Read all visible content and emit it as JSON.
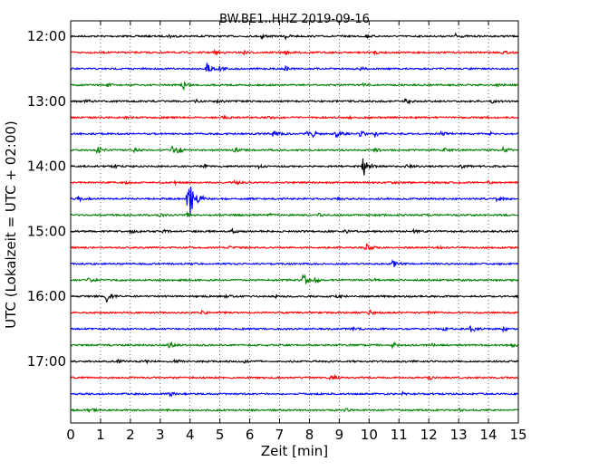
{
  "chart_data": {
    "type": "line",
    "title": "BW.BE1..HHZ 2019-09-16",
    "xlabel": "Zeit  [min]",
    "ylabel": "UTC (Lokalzeit = UTC + 02:00)",
    "xlim": [
      0,
      15
    ],
    "x_ticks": [
      "0",
      "1",
      "2",
      "3",
      "4",
      "5",
      "6",
      "7",
      "8",
      "9",
      "10",
      "11",
      "12",
      "13",
      "14",
      "15"
    ],
    "y_ticks": [
      "12:00",
      "13:00",
      "14:00",
      "15:00",
      "16:00",
      "17:00"
    ],
    "grid": "vertical dotted",
    "series_colors": [
      "#000000",
      "#ff0000",
      "#0000ff",
      "#008000"
    ],
    "traces": [
      {
        "start": "12:00",
        "color": "#000000",
        "events": [
          [
            3.3,
            0.25
          ],
          [
            6.4,
            0.35
          ],
          [
            7.2,
            0.3
          ],
          [
            9.9,
            0.2
          ],
          [
            12.9,
            0.35
          ]
        ]
      },
      {
        "start": "12:15",
        "color": "#ff0000",
        "events": [
          [
            4.8,
            0.25
          ],
          [
            5.8,
            0.2
          ],
          [
            7.2,
            0.25
          ],
          [
            10.2,
            0.2
          ],
          [
            14.5,
            0.2
          ]
        ]
      },
      {
        "start": "12:30",
        "color": "#0000ff",
        "events": [
          [
            4.55,
            1.3
          ],
          [
            5.0,
            0.4
          ],
          [
            7.2,
            0.3
          ],
          [
            9.7,
            0.25
          ]
        ]
      },
      {
        "start": "12:45",
        "color": "#008000",
        "events": [
          [
            1.2,
            0.3
          ],
          [
            3.75,
            0.9
          ],
          [
            9.8,
            0.2
          ],
          [
            14.2,
            0.2
          ]
        ]
      },
      {
        "start": "13:00",
        "color": "#000000",
        "events": [
          [
            0.5,
            0.3
          ],
          [
            4.2,
            0.25
          ],
          [
            4.9,
            0.3
          ],
          [
            11.2,
            0.55
          ],
          [
            14.1,
            0.2
          ]
        ]
      },
      {
        "start": "13:15",
        "color": "#ff0000",
        "events": [
          [
            1.8,
            0.2
          ],
          [
            5.1,
            0.2
          ],
          [
            6.6,
            0.2
          ],
          [
            9.3,
            0.2
          ]
        ]
      },
      {
        "start": "13:30",
        "color": "#0000ff",
        "events": [
          [
            6.8,
            0.55
          ],
          [
            7.9,
            0.5
          ],
          [
            8.1,
            0.45
          ],
          [
            8.9,
            0.5
          ],
          [
            9.7,
            0.5
          ],
          [
            10.2,
            0.45
          ],
          [
            12.4,
            0.35
          ],
          [
            14.0,
            0.3
          ]
        ]
      },
      {
        "start": "13:45",
        "color": "#008000",
        "events": [
          [
            0.9,
            0.55
          ],
          [
            2.1,
            0.3
          ],
          [
            3.4,
            0.5
          ],
          [
            3.6,
            0.4
          ],
          [
            5.5,
            0.35
          ],
          [
            10.2,
            0.3
          ],
          [
            12.5,
            0.3
          ],
          [
            14.5,
            0.35
          ]
        ]
      },
      {
        "start": "14:00",
        "color": "#000000",
        "events": [
          [
            1.4,
            0.3
          ],
          [
            4.5,
            0.25
          ],
          [
            6.3,
            0.2
          ],
          [
            9.8,
            1.9
          ],
          [
            11.2,
            0.3
          ],
          [
            13.1,
            0.35
          ]
        ]
      },
      {
        "start": "14:15",
        "color": "#ff0000",
        "events": [
          [
            1.8,
            0.2
          ],
          [
            3.5,
            0.2
          ],
          [
            5.5,
            0.25
          ],
          [
            10.7,
            0.2
          ],
          [
            14.0,
            0.2
          ]
        ]
      },
      {
        "start": "14:30",
        "color": "#0000ff",
        "events": [
          [
            0.25,
            0.35
          ],
          [
            3.9,
            0.9
          ],
          [
            4.0,
            2.2
          ],
          [
            4.3,
            0.6
          ],
          [
            8.9,
            0.25
          ],
          [
            14.3,
            0.4
          ]
        ]
      },
      {
        "start": "14:45",
        "color": "#008000",
        "events": [
          [
            3.0,
            0.25
          ],
          [
            3.9,
            0.3
          ],
          [
            6.7,
            0.2
          ],
          [
            8.3,
            0.2
          ],
          [
            10.4,
            0.2
          ]
        ]
      },
      {
        "start": "15:00",
        "color": "#000000",
        "events": [
          [
            2.0,
            0.3
          ],
          [
            3.1,
            0.2
          ],
          [
            5.4,
            0.25
          ],
          [
            9.2,
            0.25
          ],
          [
            11.5,
            0.2
          ]
        ]
      },
      {
        "start": "15:15",
        "color": "#ff0000",
        "events": [
          [
            5.3,
            0.2
          ],
          [
            9.9,
            0.6
          ],
          [
            12.3,
            0.2
          ]
        ]
      },
      {
        "start": "15:30",
        "color": "#0000ff",
        "events": [
          [
            10.8,
            0.55
          ],
          [
            4.0,
            0.15
          ]
        ]
      },
      {
        "start": "15:45",
        "color": "#008000",
        "events": [
          [
            0.6,
            0.3
          ],
          [
            7.8,
            1.0
          ],
          [
            8.2,
            0.4
          ],
          [
            10.2,
            0.2
          ]
        ]
      },
      {
        "start": "16:00",
        "color": "#000000",
        "events": [
          [
            1.2,
            0.8
          ],
          [
            5.2,
            0.2
          ],
          [
            6.9,
            0.25
          ],
          [
            8.9,
            0.2
          ]
        ]
      },
      {
        "start": "16:15",
        "color": "#ff0000",
        "events": [
          [
            4.4,
            0.2
          ],
          [
            10.0,
            0.4
          ],
          [
            12.0,
            0.2
          ]
        ]
      },
      {
        "start": "16:30",
        "color": "#0000ff",
        "events": [
          [
            9.5,
            0.25
          ],
          [
            12.5,
            0.25
          ],
          [
            13.4,
            0.5
          ],
          [
            14.5,
            0.3
          ]
        ]
      },
      {
        "start": "16:45",
        "color": "#008000",
        "events": [
          [
            3.3,
            0.4
          ],
          [
            10.8,
            0.45
          ],
          [
            12.1,
            0.2
          ],
          [
            14.8,
            0.2
          ]
        ]
      },
      {
        "start": "17:00",
        "color": "#000000",
        "events": [
          [
            1.6,
            0.25
          ],
          [
            2.5,
            0.2
          ],
          [
            3.5,
            0.3
          ],
          [
            5.8,
            0.2
          ]
        ]
      },
      {
        "start": "17:15",
        "color": "#ff0000",
        "events": [
          [
            8.7,
            0.5
          ],
          [
            12.0,
            0.2
          ]
        ]
      },
      {
        "start": "17:30",
        "color": "#0000ff",
        "events": [
          [
            3.3,
            0.4
          ],
          [
            11.1,
            0.2
          ]
        ]
      },
      {
        "start": "17:45",
        "color": "#008000",
        "events": [
          [
            0.6,
            0.3
          ],
          [
            9.2,
            0.2
          ],
          [
            13.0,
            0.2
          ]
        ]
      }
    ]
  }
}
